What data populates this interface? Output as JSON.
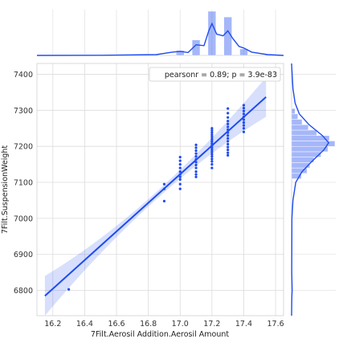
{
  "chart_data": {
    "type": "scatter",
    "xlabel": "7Filt.Aerosil Addition.Aerosil Amount",
    "ylabel": "7Filt.SuspensionWeight",
    "xlim": [
      16.1,
      17.65
    ],
    "ylim": [
      6730,
      7430
    ],
    "xticks": [
      16.2,
      16.4,
      16.6,
      16.8,
      17.0,
      17.2,
      17.4,
      17.6
    ],
    "yticks": [
      6800,
      6900,
      7000,
      7100,
      7200,
      7300,
      7400
    ],
    "annotation": "pearsonr = 0.89; p = 3.9e-83",
    "grid": true,
    "color": "#1f4cf0",
    "regression": {
      "x": [
        16.15,
        17.54
      ],
      "y": [
        6785,
        7337
      ],
      "ci_width_ends": 55,
      "ci_width_mid": 10
    },
    "points": [
      [
        16.3,
        6803
      ],
      [
        16.9,
        7048
      ],
      [
        16.9,
        7082
      ],
      [
        16.9,
        7095
      ],
      [
        17.0,
        7082
      ],
      [
        17.0,
        7095
      ],
      [
        17.0,
        7108
      ],
      [
        17.0,
        7115
      ],
      [
        17.0,
        7122
      ],
      [
        17.0,
        7130
      ],
      [
        17.0,
        7140
      ],
      [
        17.0,
        7150
      ],
      [
        17.0,
        7160
      ],
      [
        17.0,
        7170
      ],
      [
        17.1,
        7115
      ],
      [
        17.1,
        7122
      ],
      [
        17.1,
        7130
      ],
      [
        17.1,
        7140
      ],
      [
        17.1,
        7148
      ],
      [
        17.1,
        7156
      ],
      [
        17.1,
        7164
      ],
      [
        17.1,
        7172
      ],
      [
        17.1,
        7180
      ],
      [
        17.1,
        7188
      ],
      [
        17.1,
        7196
      ],
      [
        17.1,
        7204
      ],
      [
        17.2,
        7140
      ],
      [
        17.2,
        7150
      ],
      [
        17.2,
        7158
      ],
      [
        17.2,
        7165
      ],
      [
        17.2,
        7172
      ],
      [
        17.2,
        7178
      ],
      [
        17.2,
        7184
      ],
      [
        17.2,
        7190
      ],
      [
        17.2,
        7196
      ],
      [
        17.2,
        7202
      ],
      [
        17.2,
        7208
      ],
      [
        17.2,
        7214
      ],
      [
        17.2,
        7220
      ],
      [
        17.2,
        7226
      ],
      [
        17.2,
        7232
      ],
      [
        17.2,
        7238
      ],
      [
        17.2,
        7244
      ],
      [
        17.2,
        7250
      ],
      [
        17.3,
        7175
      ],
      [
        17.3,
        7182
      ],
      [
        17.3,
        7190
      ],
      [
        17.3,
        7198
      ],
      [
        17.3,
        7206
      ],
      [
        17.3,
        7214
      ],
      [
        17.3,
        7222
      ],
      [
        17.3,
        7230
      ],
      [
        17.3,
        7238
      ],
      [
        17.3,
        7246
      ],
      [
        17.3,
        7254
      ],
      [
        17.3,
        7262
      ],
      [
        17.3,
        7270
      ],
      [
        17.3,
        7280
      ],
      [
        17.3,
        7292
      ],
      [
        17.3,
        7305
      ],
      [
        17.4,
        7240
      ],
      [
        17.4,
        7250
      ],
      [
        17.4,
        7258
      ],
      [
        17.4,
        7266
      ],
      [
        17.4,
        7274
      ],
      [
        17.4,
        7282
      ],
      [
        17.4,
        7290
      ],
      [
        17.4,
        7298
      ],
      [
        17.4,
        7306
      ],
      [
        17.4,
        7314
      ]
    ],
    "x_marginal_hist": {
      "centers": [
        17.0,
        17.1,
        17.2,
        17.3,
        17.4
      ],
      "densities": [
        0.6,
        1.9,
        5.4,
        4.7,
        0.8
      ]
    },
    "x_marginal_kde": [
      [
        16.1,
        0.0
      ],
      [
        16.5,
        0.02
      ],
      [
        16.85,
        0.1
      ],
      [
        16.95,
        0.4
      ],
      [
        17.0,
        0.5
      ],
      [
        17.05,
        0.35
      ],
      [
        17.1,
        1.3
      ],
      [
        17.15,
        1.2
      ],
      [
        17.18,
        3.0
      ],
      [
        17.2,
        3.9
      ],
      [
        17.23,
        2.6
      ],
      [
        17.27,
        2.4
      ],
      [
        17.3,
        3.0
      ],
      [
        17.33,
        2.1
      ],
      [
        17.37,
        1.1
      ],
      [
        17.4,
        0.9
      ],
      [
        17.45,
        0.4
      ],
      [
        17.55,
        0.1
      ],
      [
        17.65,
        0.0
      ]
    ],
    "y_marginal_hist": {
      "bins": [
        [
          7110,
          7125,
          1.4
        ],
        [
          7125,
          7140,
          2.2
        ],
        [
          7140,
          7155,
          2.6
        ],
        [
          7155,
          7170,
          3.2
        ],
        [
          7170,
          7185,
          4.2
        ],
        [
          7185,
          7200,
          5.2
        ],
        [
          7200,
          7215,
          6.2
        ],
        [
          7215,
          7230,
          5.4
        ],
        [
          7230,
          7245,
          3.6
        ],
        [
          7245,
          7260,
          2.4
        ],
        [
          7260,
          7275,
          1.5
        ],
        [
          7275,
          7290,
          0.9
        ],
        [
          7290,
          7305,
          0.5
        ]
      ]
    },
    "y_marginal_kde": [
      [
        6730,
        0.0
      ],
      [
        6780,
        0.04
      ],
      [
        6800,
        0.08
      ],
      [
        6850,
        0.02
      ],
      [
        7000,
        0.05
      ],
      [
        7050,
        0.2
      ],
      [
        7100,
        0.6
      ],
      [
        7130,
        1.5
      ],
      [
        7160,
        3.0
      ],
      [
        7190,
        4.6
      ],
      [
        7210,
        5.3
      ],
      [
        7230,
        4.4
      ],
      [
        7260,
        2.5
      ],
      [
        7290,
        1.1
      ],
      [
        7320,
        0.5
      ],
      [
        7360,
        0.2
      ],
      [
        7400,
        0.08
      ],
      [
        7430,
        0.0
      ]
    ]
  }
}
